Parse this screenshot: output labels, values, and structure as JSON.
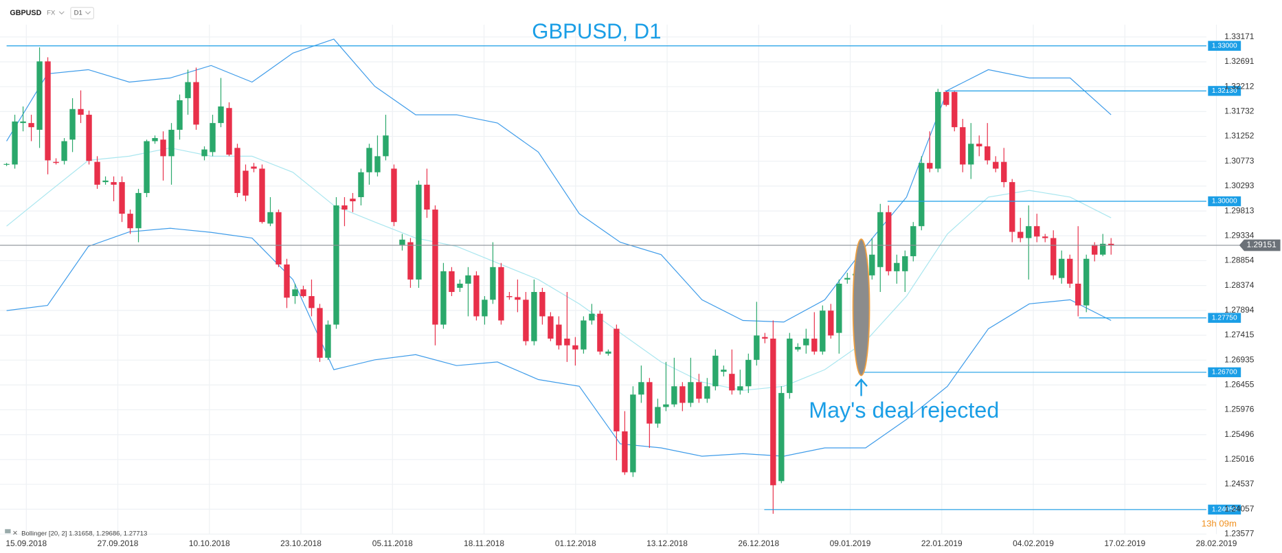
{
  "header": {
    "symbol": "GBPUSD",
    "market": "FX",
    "timeframe": "D1"
  },
  "chart_data": {
    "type": "candlestick",
    "title": "GBPUSD, D1",
    "annotation": "May's deal rejected",
    "timer": "13h 09m",
    "x_labels": [
      "15.09.2018",
      "27.09.2018",
      "10.10.2018",
      "23.10.2018",
      "05.11.2018",
      "18.11.2018",
      "01.12.2018",
      "13.12.2018",
      "26.12.2018",
      "09.01.2019",
      "22.01.2019",
      "04.02.2019",
      "17.02.2019",
      "28.02.2019"
    ],
    "ylim": [
      1.23577,
      1.33171
    ],
    "yticks": [
      1.33171,
      1.32691,
      1.32212,
      1.31732,
      1.31252,
      1.30773,
      1.30293,
      1.29813,
      1.29334,
      1.28854,
      1.28374,
      1.27894,
      1.27415,
      1.26935,
      1.26455,
      1.25976,
      1.25496,
      1.25016,
      1.24537,
      1.24057,
      1.23577
    ],
    "grid": true,
    "up_color": "#2aa86b",
    "down_color": "#e8304a",
    "candles": [
      [
        1.3071,
        1.3074,
        1.3068,
        1.3072
      ],
      [
        1.3071,
        1.3167,
        1.3063,
        1.3154
      ],
      [
        1.3151,
        1.3183,
        1.3135,
        1.3154
      ],
      [
        1.3151,
        1.3167,
        1.3116,
        1.3143
      ],
      [
        1.3138,
        1.3297,
        1.3103,
        1.327
      ],
      [
        1.327,
        1.3278,
        1.3052,
        1.3079
      ],
      [
        1.3076,
        1.3083,
        1.3071,
        1.3074
      ],
      [
        1.3078,
        1.3122,
        1.3071,
        1.3116
      ],
      [
        1.3119,
        1.3199,
        1.3095,
        1.3178
      ],
      [
        1.3178,
        1.3214,
        1.3151,
        1.3167
      ],
      [
        1.3167,
        1.3175,
        1.3071,
        1.3078
      ],
      [
        1.3076,
        1.3087,
        1.3024,
        1.3032
      ],
      [
        1.3037,
        1.3048,
        1.3032,
        1.304
      ],
      [
        1.3037,
        1.3048,
        1.3,
        1.3032
      ],
      [
        1.3037,
        1.3048,
        1.296,
        1.2976
      ],
      [
        1.2976,
        1.2984,
        1.2937,
        1.2948
      ],
      [
        1.2948,
        1.3024,
        1.2921,
        1.3016
      ],
      [
        1.3016,
        1.3119,
        1.3008,
        1.3116
      ],
      [
        1.3116,
        1.3127,
        1.3111,
        1.3122
      ],
      [
        1.3119,
        1.3135,
        1.304,
        1.3087
      ],
      [
        1.3087,
        1.3151,
        1.3032,
        1.3138
      ],
      [
        1.3138,
        1.3206,
        1.3119,
        1.3195
      ],
      [
        1.3199,
        1.3254,
        1.3167,
        1.323
      ],
      [
        1.323,
        1.3258,
        1.3138,
        1.3148
      ],
      [
        1.3087,
        1.3106,
        1.3079,
        1.31
      ],
      [
        1.3095,
        1.3167,
        1.3087,
        1.3151
      ],
      [
        1.3151,
        1.3238,
        1.3143,
        1.3183
      ],
      [
        1.318,
        1.3191,
        1.3087,
        1.309
      ],
      [
        1.3103,
        1.3111,
        1.3008,
        1.3016
      ],
      [
        1.3059,
        1.3071,
        1.3,
        1.3011
      ],
      [
        1.3067,
        1.3074,
        1.3056,
        1.3063
      ],
      [
        1.3063,
        1.3071,
        1.2957,
        1.296
      ],
      [
        1.2957,
        1.3008,
        1.2952,
        1.2979
      ],
      [
        1.2979,
        1.2984,
        1.2873,
        1.2878
      ],
      [
        1.2878,
        1.2889,
        1.2794,
        1.2814
      ],
      [
        1.2817,
        1.2841,
        1.2802,
        1.283
      ],
      [
        1.283,
        1.2837,
        1.2814,
        1.2817
      ],
      [
        1.2817,
        1.2849,
        1.2778,
        1.2794
      ],
      [
        1.2794,
        1.2802,
        1.269,
        1.2698
      ],
      [
        1.2698,
        1.277,
        1.2694,
        1.2762
      ],
      [
        1.2762,
        1.3008,
        1.2754,
        1.2992
      ],
      [
        1.2992,
        1.3008,
        1.2952,
        1.2984
      ],
      [
        1.3005,
        1.3016,
        1.2979,
        1.3
      ],
      [
        1.3008,
        1.3063,
        1.2992,
        1.3056
      ],
      [
        1.3056,
        1.3111,
        1.3032,
        1.3103
      ],
      [
        1.3056,
        1.3127,
        1.3048,
        1.3087
      ],
      [
        1.3087,
        1.3167,
        1.3079,
        1.3127
      ],
      [
        1.3063,
        1.3071,
        1.2952,
        1.296
      ],
      [
        1.2916,
        1.2937,
        1.2905,
        1.2926
      ],
      [
        1.2921,
        1.2929,
        1.2833,
        1.2849
      ],
      [
        1.2849,
        1.304,
        1.2833,
        1.3032
      ],
      [
        1.3032,
        1.3063,
        1.2968,
        1.2984
      ],
      [
        1.2984,
        1.2992,
        1.2722,
        1.2762
      ],
      [
        1.2762,
        1.2881,
        1.2754,
        1.2865
      ],
      [
        1.2865,
        1.2873,
        1.2817,
        1.2825
      ],
      [
        1.2833,
        1.2849,
        1.2825,
        1.2841
      ],
      [
        1.2841,
        1.2873,
        1.2778,
        1.2857
      ],
      [
        1.2857,
        1.2865,
        1.277,
        1.2778
      ],
      [
        1.2778,
        1.2817,
        1.2762,
        1.281
      ],
      [
        1.281,
        1.2921,
        1.2802,
        1.2873
      ],
      [
        1.2873,
        1.2881,
        1.2762,
        1.277
      ],
      [
        1.2817,
        1.2825,
        1.281,
        1.2815
      ],
      [
        1.2815,
        1.2849,
        1.2786,
        1.281
      ],
      [
        1.281,
        1.2825,
        1.2722,
        1.273
      ],
      [
        1.273,
        1.2849,
        1.2722,
        1.2825
      ],
      [
        1.2825,
        1.2833,
        1.2762,
        1.2778
      ],
      [
        1.2778,
        1.2786,
        1.273,
        1.2735
      ],
      [
        1.2762,
        1.2778,
        1.2714,
        1.2722
      ],
      [
        1.2735,
        1.2825,
        1.269,
        1.2722
      ],
      [
        1.2722,
        1.2738,
        1.2683,
        1.2714
      ],
      [
        1.2714,
        1.2778,
        1.2706,
        1.277
      ],
      [
        1.277,
        1.2802,
        1.2762,
        1.2783
      ],
      [
        1.2783,
        1.2789,
        1.2704,
        1.271
      ],
      [
        1.2706,
        1.2714,
        1.2702,
        1.271
      ],
      [
        1.2754,
        1.2762,
        1.25,
        1.2556
      ],
      [
        1.2556,
        1.2595,
        1.2472,
        1.2477
      ],
      [
        1.2477,
        1.2643,
        1.2468,
        1.2627
      ],
      [
        1.2627,
        1.2683,
        1.2611,
        1.2651
      ],
      [
        1.2651,
        1.2659,
        1.2524,
        1.2571
      ],
      [
        1.2571,
        1.2619,
        1.2563,
        1.2603
      ],
      [
        1.2603,
        1.269,
        1.2595,
        1.2608
      ],
      [
        1.2608,
        1.2698,
        1.2603,
        1.2643
      ],
      [
        1.2643,
        1.2651,
        1.2595,
        1.2611
      ],
      [
        1.2611,
        1.2698,
        1.2603,
        1.2651
      ],
      [
        1.2651,
        1.2667,
        1.2611,
        1.2619
      ],
      [
        1.2619,
        1.2659,
        1.2611,
        1.2643
      ],
      [
        1.2643,
        1.2714,
        1.2635,
        1.2702
      ],
      [
        1.2671,
        1.2683,
        1.2662,
        1.2675
      ],
      [
        1.2667,
        1.2714,
        1.2627,
        1.2635
      ],
      [
        1.2635,
        1.2675,
        1.2627,
        1.2643
      ],
      [
        1.2643,
        1.2706,
        1.263,
        1.2694
      ],
      [
        1.2694,
        1.2806,
        1.2683,
        1.2741
      ],
      [
        1.2738,
        1.2746,
        1.2726,
        1.2735
      ],
      [
        1.2735,
        1.277,
        1.2397,
        1.2452
      ],
      [
        1.246,
        1.2643,
        1.2456,
        1.263
      ],
      [
        1.263,
        1.2746,
        1.2619,
        1.2735
      ],
      [
        1.2714,
        1.2726,
        1.271,
        1.2719
      ],
      [
        1.2722,
        1.2754,
        1.2706,
        1.2735
      ],
      [
        1.2735,
        1.2786,
        1.2704,
        1.271
      ],
      [
        1.271,
        1.2799,
        1.2704,
        1.2789
      ],
      [
        1.2789,
        1.2802,
        1.2735,
        1.2741
      ],
      [
        1.2746,
        1.2849,
        1.2706,
        1.2841
      ],
      [
        1.2849,
        1.2862,
        1.2841,
        1.2852
      ],
      [
        1.2857,
        1.2873,
        1.2849,
        1.286
      ],
      [
        1.286,
        1.2889,
        1.2849,
        1.2857
      ],
      [
        1.2857,
        1.2929,
        1.2849,
        1.2897
      ],
      [
        1.2873,
        1.2995,
        1.2825,
        1.2979
      ],
      [
        1.2979,
        1.2992,
        1.2857,
        1.2865
      ],
      [
        1.2865,
        1.2897,
        1.2841,
        1.2881
      ],
      [
        1.2865,
        1.2905,
        1.2825,
        1.2894
      ],
      [
        1.2894,
        1.296,
        1.2884,
        1.2952
      ],
      [
        1.2952,
        1.3087,
        1.2944,
        1.3074
      ],
      [
        1.3074,
        1.3135,
        1.3056,
        1.3063
      ],
      [
        1.3063,
        1.3217,
        1.3056,
        1.3211
      ],
      [
        1.3211,
        1.3214,
        1.3183,
        1.3186
      ],
      [
        1.3211,
        1.3214,
        1.3135,
        1.3143
      ],
      [
        1.3143,
        1.3159,
        1.3056,
        1.3071
      ],
      [
        1.3071,
        1.3151,
        1.3043,
        1.3111
      ],
      [
        1.3111,
        1.3127,
        1.3087,
        1.3106
      ],
      [
        1.3106,
        1.3151,
        1.3071,
        1.3079
      ],
      [
        1.3076,
        1.3087,
        1.3056,
        1.3063
      ],
      [
        1.3076,
        1.3103,
        1.3027,
        1.3037
      ],
      [
        1.3037,
        1.3043,
        1.2921,
        1.2941
      ],
      [
        1.2941,
        1.2968,
        1.2921,
        1.2929
      ],
      [
        1.2929,
        1.2992,
        1.2849,
        1.2952
      ],
      [
        1.2952,
        1.2976,
        1.2921,
        1.2932
      ],
      [
        1.2932,
        1.2937,
        1.2921,
        1.2929
      ],
      [
        1.2929,
        1.2944,
        1.2849,
        1.2857
      ],
      [
        1.2852,
        1.2905,
        1.2841,
        1.2889
      ],
      [
        1.2889,
        1.2897,
        1.2833,
        1.2841
      ],
      [
        1.2841,
        1.2952,
        1.2778,
        1.2799
      ],
      [
        1.2799,
        1.2897,
        1.2786,
        1.2889
      ],
      [
        1.2916,
        1.2921,
        1.2884,
        1.2897
      ],
      [
        1.2897,
        1.2937,
        1.2894,
        1.2918
      ],
      [
        1.2918,
        1.2929,
        1.2897,
        1.2915
      ]
    ],
    "bollinger": {
      "label": "Bollinger",
      "params": "[20, 2]",
      "values_text": "1.31658, 1.29686, 1.27713",
      "color": "#3d9be9",
      "middle_color": "#a9e6ef",
      "upper": [
        1.3116,
        1.3246,
        1.3254,
        1.323,
        1.3238,
        1.3262,
        1.323,
        1.3286,
        1.3313,
        1.3222,
        1.3167,
        1.3167,
        1.3151,
        1.3095,
        1.2976,
        1.2921,
        1.2897,
        1.281,
        1.277,
        1.2767,
        1.281,
        1.2913,
        1.3008,
        1.3214,
        1.3254,
        1.3238,
        1.3238,
        1.3167
      ],
      "middle": [
        1.2952,
        1.3016,
        1.3079,
        1.3087,
        1.3103,
        1.3087,
        1.3087,
        1.3056,
        1.2992,
        1.296,
        1.2929,
        1.2913,
        1.2881,
        1.2849,
        1.2802,
        1.2746,
        1.269,
        1.2651,
        1.2635,
        1.2643,
        1.2675,
        1.273,
        1.2817,
        1.2937,
        1.3008,
        1.3021,
        1.3008,
        1.2968
      ],
      "lower": [
        1.2789,
        1.2799,
        1.2913,
        1.2941,
        1.2948,
        1.294,
        1.2929,
        1.2849,
        1.2675,
        1.2694,
        1.2704,
        1.2683,
        1.269,
        1.2656,
        1.2643,
        1.2532,
        1.2524,
        1.2508,
        1.2513,
        1.2508,
        1.2524,
        1.2524,
        1.2579,
        1.2643,
        1.2754,
        1.2802,
        1.281,
        1.277
      ]
    },
    "levels": [
      {
        "value": 1.33,
        "label": "1.33000"
      },
      {
        "value": 1.3213,
        "label": "1.32130"
      },
      {
        "value": 1.3,
        "label": "1.30000"
      },
      {
        "value": 1.2775,
        "label": "1.27750"
      },
      {
        "value": 1.267,
        "label": "1.26700"
      },
      {
        "value": 1.2405,
        "label": "1.24050"
      }
    ],
    "level_color": "#1a9ee6",
    "current_price": 1.29151,
    "current_color": "#8a8f96"
  }
}
